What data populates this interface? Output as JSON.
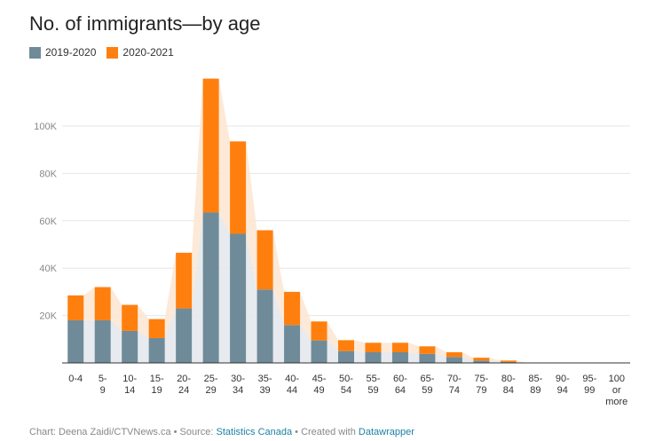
{
  "chart_data": {
    "type": "bar",
    "stacked": true,
    "title": "No. of immigrants—by age",
    "categories": [
      "0-4",
      "5-9",
      "10-14",
      "15-19",
      "20-24",
      "25-29",
      "30-34",
      "35-39",
      "40-44",
      "45-49",
      "50-54",
      "55-59",
      "60-64",
      "65-59",
      "70-74",
      "75-79",
      "80-84",
      "85-89",
      "90-94",
      "95-99",
      "100 or more"
    ],
    "series": [
      {
        "name": "2019-2020",
        "color": "#6f8b99",
        "values": [
          18000,
          18000,
          13500,
          10500,
          23000,
          63500,
          54500,
          31000,
          16000,
          9500,
          5000,
          4500,
          4500,
          3800,
          2500,
          1000,
          400,
          0,
          0,
          0,
          0
        ]
      },
      {
        "name": "2020-2021",
        "color": "#ff7f0e",
        "values": [
          10500,
          14000,
          11000,
          8000,
          23500,
          56500,
          39000,
          25000,
          14000,
          8000,
          4600,
          4000,
          4000,
          3200,
          2000,
          1200,
          600,
          0,
          0,
          0,
          0
        ]
      }
    ],
    "ylim": [
      0,
      120000
    ],
    "yticks": [
      20000,
      40000,
      60000,
      80000,
      100000
    ],
    "ytick_labels": [
      "20K",
      "40K",
      "60K",
      "80K",
      "100K"
    ],
    "grid": true,
    "legend_position": "top-left"
  },
  "footer": {
    "credit": "Chart: Deena Zaidi/CTVNews.ca • Source: ",
    "source_link": "Statistics Canada",
    "created": " • Created with ",
    "tool_link": "Datawrapper"
  }
}
